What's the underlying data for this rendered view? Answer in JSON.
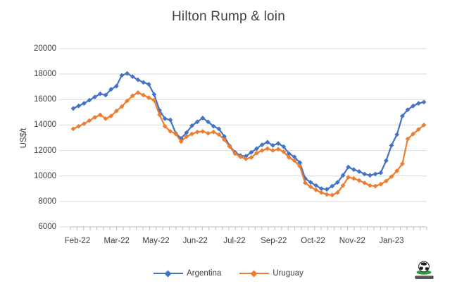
{
  "chart_data": {
    "type": "line",
    "title": "Hilton Rump & loin",
    "ylabel": "US$/t",
    "ylim": [
      6000,
      20000
    ],
    "y_ticks": [
      20000,
      18000,
      16000,
      14000,
      12000,
      10000,
      8000,
      6000
    ],
    "x_tick_labels": [
      "Feb-22",
      "Mar-22",
      "May-22",
      "Jun-22",
      "Jul-22",
      "Sep-22",
      "Oct-22",
      "Nov-22",
      "Jan-23"
    ],
    "x_unit": "weekly",
    "grid": "horizontal",
    "legend_position": "bottom",
    "marker": "diamond",
    "series": [
      {
        "name": "Argentina",
        "color": "#4472C4",
        "values": [
          15300,
          15500,
          15700,
          15950,
          16200,
          16450,
          16350,
          16800,
          17050,
          17900,
          18050,
          17800,
          17550,
          17350,
          17200,
          16400,
          15150,
          14500,
          14400,
          13350,
          12950,
          13400,
          13950,
          14250,
          14550,
          14250,
          13900,
          13700,
          13100,
          12350,
          11850,
          11600,
          11550,
          11850,
          12150,
          12450,
          12650,
          12400,
          12550,
          12300,
          11750,
          11500,
          11050,
          9800,
          9500,
          9250,
          9000,
          8950,
          9200,
          9500,
          10050,
          10700,
          10500,
          10350,
          10150,
          10050,
          10150,
          10250,
          11200,
          12400,
          13250,
          14700,
          15200,
          15500,
          15700,
          15800
        ]
      },
      {
        "name": "Uruguay",
        "color": "#ED7D31",
        "values": [
          13700,
          13900,
          14100,
          14350,
          14600,
          14800,
          14500,
          14700,
          15100,
          15450,
          15900,
          16300,
          16550,
          16350,
          16150,
          15950,
          14800,
          13900,
          13500,
          13300,
          12700,
          13100,
          13300,
          13450,
          13500,
          13350,
          13450,
          13250,
          12850,
          12300,
          11750,
          11500,
          11350,
          11450,
          11800,
          12000,
          12150,
          12000,
          12100,
          11900,
          11450,
          11200,
          10750,
          9450,
          9150,
          8900,
          8700,
          8550,
          8500,
          8700,
          9250,
          9900,
          9800,
          9650,
          9450,
          9250,
          9200,
          9350,
          9600,
          9950,
          10400,
          10950,
          12900,
          13300,
          13650,
          14000
        ]
      }
    ]
  },
  "colors": {
    "gridline": "#D9D9D9",
    "axis": "#BFBFBF",
    "text": "#404040",
    "title_text": "#3F3F3F",
    "logo_green": "#2E9B44",
    "logo_dark": "#1F1F1F"
  },
  "branding": {
    "logo_icon": "globe-logo"
  }
}
